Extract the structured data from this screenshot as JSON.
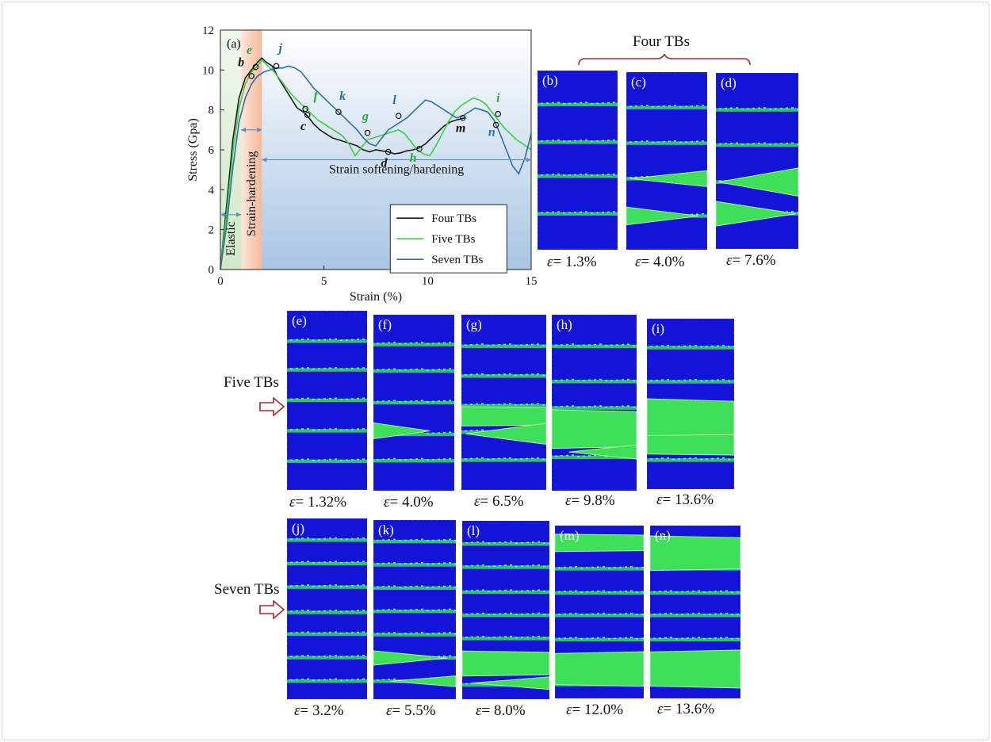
{
  "colors": {
    "four": "#1a1a1a",
    "five": "#3ecf3e",
    "seven": "#2b6ea8",
    "label_five": "#2aa83a",
    "label_seven": "#2b6ea8",
    "panel_bg": "#1414d6",
    "twin_band": "#2fd46a",
    "arrow": "#a52a2a"
  },
  "chart_data": {
    "type": "line",
    "panel_label": "(a)",
    "xlabel": "Strain (%)",
    "ylabel": "Stress (Gpa)",
    "xlim": [
      0,
      15
    ],
    "ylim": [
      0,
      12
    ],
    "xticks": [
      0,
      5,
      10,
      15
    ],
    "yticks": [
      0,
      2,
      4,
      6,
      8,
      10,
      12
    ],
    "regions": [
      {
        "name": "Elastic",
        "from": 0,
        "to": 1
      },
      {
        "name": "Strain-hardening",
        "from": 1,
        "to": 2
      },
      {
        "name": "Strain softening/hardening",
        "from": 2,
        "to": 15
      }
    ],
    "legend": {
      "position": "bottom-right",
      "entries": [
        "Four TBs",
        "Five TBs",
        "Seven TBs"
      ]
    },
    "series": [
      {
        "name": "Four TBs",
        "key": "four",
        "x": [
          0,
          0.3,
          0.6,
          0.9,
          1.2,
          1.5,
          1.8,
          2.0,
          2.2,
          2.5,
          2.8,
          3.1,
          3.4,
          3.7,
          4.0,
          4.2,
          4.5,
          4.8,
          5.1,
          5.4,
          5.7,
          6.0,
          6.3,
          6.6,
          6.9,
          7.2,
          7.5,
          7.8,
          8.1,
          8.4,
          8.7,
          9.0,
          9.3,
          9.6,
          9.9,
          10.2,
          10.5,
          10.8,
          11.1,
          11.4,
          11.8
        ],
        "y": [
          0,
          3.2,
          6.5,
          8.6,
          9.6,
          10.0,
          10.4,
          10.6,
          10.4,
          10.2,
          9.6,
          9.1,
          8.6,
          8.1,
          7.9,
          7.7,
          7.3,
          7.0,
          6.8,
          6.6,
          6.5,
          6.4,
          6.3,
          6.2,
          6.0,
          5.9,
          6.0,
          5.95,
          5.9,
          5.8,
          5.85,
          5.95,
          6.0,
          6.1,
          6.3,
          6.6,
          6.9,
          7.2,
          7.4,
          7.5,
          7.6
        ]
      },
      {
        "name": "Five TBs",
        "key": "five",
        "x": [
          0,
          0.3,
          0.6,
          0.9,
          1.2,
          1.5,
          1.8,
          2.0,
          2.3,
          2.6,
          2.9,
          3.2,
          3.5,
          3.8,
          4.1,
          4.4,
          4.7,
          5.0,
          5.3,
          5.6,
          5.9,
          6.2,
          6.5,
          6.8,
          7.1,
          7.4,
          7.7,
          8.0,
          8.3,
          8.6,
          8.9,
          9.2,
          9.5,
          9.8,
          10.1,
          10.4,
          10.7,
          11.0,
          11.3,
          11.6,
          11.9,
          12.2,
          12.5,
          12.8,
          13.1,
          13.4,
          13.7,
          14.0,
          14.3,
          14.6,
          15.0
        ],
        "y": [
          0,
          2.8,
          5.9,
          8.1,
          9.3,
          9.9,
          10.2,
          10.5,
          10.2,
          9.9,
          9.5,
          9.1,
          8.7,
          8.4,
          8.1,
          7.8,
          7.5,
          7.3,
          7.1,
          6.9,
          6.7,
          6.3,
          5.7,
          6.1,
          6.5,
          6.6,
          6.7,
          6.8,
          6.9,
          7.0,
          6.8,
          6.4,
          6.0,
          5.8,
          5.7,
          6.2,
          6.8,
          7.4,
          7.9,
          8.2,
          8.4,
          8.6,
          8.5,
          8.3,
          7.9,
          7.5,
          7.1,
          6.8,
          6.5,
          6.3,
          6.0
        ]
      },
      {
        "name": "Seven TBs",
        "key": "seven",
        "x": [
          0,
          0.3,
          0.6,
          0.9,
          1.2,
          1.5,
          1.8,
          2.1,
          2.4,
          2.7,
          3.0,
          3.3,
          3.6,
          3.9,
          4.2,
          4.5,
          4.8,
          5.1,
          5.4,
          5.7,
          6.0,
          6.3,
          6.6,
          6.9,
          7.2,
          7.5,
          7.8,
          8.1,
          8.4,
          8.7,
          9.0,
          9.3,
          9.6,
          9.9,
          10.2,
          10.5,
          10.8,
          11.1,
          11.4,
          11.7,
          12.0,
          12.3,
          12.6,
          12.9,
          13.2,
          13.5,
          13.8,
          14.1,
          14.4,
          14.7,
          15.0
        ],
        "y": [
          0,
          2.2,
          5.1,
          7.4,
          8.6,
          9.3,
          9.7,
          9.9,
          10.0,
          10.1,
          10.1,
          10.2,
          10.1,
          9.9,
          9.5,
          9.1,
          8.8,
          8.5,
          8.2,
          7.9,
          7.6,
          7.3,
          7.0,
          6.6,
          6.3,
          6.2,
          6.6,
          7.0,
          7.2,
          7.4,
          7.6,
          7.9,
          8.2,
          8.5,
          8.4,
          8.2,
          8.0,
          7.8,
          7.6,
          7.7,
          7.9,
          8.1,
          8.0,
          7.9,
          7.5,
          6.8,
          6.0,
          5.2,
          4.8,
          5.6,
          6.8
        ]
      }
    ],
    "markers": [
      {
        "label": "b",
        "series": "four",
        "x": 1.5,
        "y": 9.7,
        "tx": 1.0,
        "ty": 10.2
      },
      {
        "label": "c",
        "series": "four",
        "x": 4.2,
        "y": 7.75,
        "tx": 4.0,
        "ty": 7.0
      },
      {
        "label": "d",
        "series": "four",
        "x": 8.1,
        "y": 5.9,
        "tx": 7.9,
        "ty": 5.15
      },
      {
        "label": "m",
        "series": "four",
        "x": 11.7,
        "y": 7.6,
        "tx": 11.6,
        "ty": 6.9
      },
      {
        "label": "e",
        "series": "five",
        "x": 1.7,
        "y": 10.15,
        "tx": 1.4,
        "ty": 10.8
      },
      {
        "label": "f",
        "series": "five",
        "x": 4.1,
        "y": 8.05,
        "tx": 4.6,
        "ty": 8.5
      },
      {
        "label": "g",
        "series": "five",
        "x": 7.1,
        "y": 6.85,
        "tx": 7.0,
        "ty": 7.5
      },
      {
        "label": "h",
        "series": "five",
        "x": 9.6,
        "y": 6.05,
        "tx": 9.3,
        "ty": 5.4
      },
      {
        "label": "i",
        "series": "five",
        "x": 13.4,
        "y": 7.8,
        "tx": 13.4,
        "ty": 8.4
      },
      {
        "label": "j",
        "series": "seven",
        "x": 2.7,
        "y": 10.2,
        "tx": 2.9,
        "ty": 10.9
      },
      {
        "label": "k",
        "series": "seven",
        "x": 5.7,
        "y": 7.9,
        "tx": 5.9,
        "ty": 8.5
      },
      {
        "label": "l",
        "series": "seven",
        "x": 8.6,
        "y": 7.7,
        "tx": 8.4,
        "ty": 8.3
      },
      {
        "label": "n",
        "series": "seven",
        "x": 13.3,
        "y": 7.25,
        "tx": 13.1,
        "ty": 6.7
      }
    ]
  },
  "groups": {
    "four_title": "Four TBs",
    "five_label": "Five TBs",
    "seven_label": "Seven TBs"
  },
  "panels": [
    {
      "id": "b",
      "label": "(b)",
      "strain": "= 1.3%",
      "bands": "four-b"
    },
    {
      "id": "c",
      "label": "(c)",
      "strain": "= 4.0%",
      "bands": "four-c"
    },
    {
      "id": "d",
      "label": "(d)",
      "strain": "= 7.6%",
      "bands": "four-d"
    },
    {
      "id": "e",
      "label": "(e)",
      "strain": "= 1.32%",
      "bands": "five-e"
    },
    {
      "id": "f",
      "label": "(f)",
      "strain": "= 4.0%",
      "bands": "five-f"
    },
    {
      "id": "g",
      "label": "(g)",
      "strain": "= 6.5%",
      "bands": "five-g"
    },
    {
      "id": "h",
      "label": "(h)",
      "strain": "= 9.8%",
      "bands": "five-h"
    },
    {
      "id": "i",
      "label": "(i)",
      "strain": "= 13.6%",
      "bands": "five-i"
    },
    {
      "id": "j",
      "label": "(j)",
      "strain": "= 3.2%",
      "bands": "seven-j"
    },
    {
      "id": "k",
      "label": "(k)",
      "strain": "= 5.5%",
      "bands": "seven-k"
    },
    {
      "id": "l",
      "label": "(l)",
      "strain": "= 8.0%",
      "bands": "seven-l"
    },
    {
      "id": "m",
      "label": "(m)",
      "strain": "= 12.0%",
      "bands": "seven-m"
    },
    {
      "id": "n",
      "label": "(n)",
      "strain": "= 13.6%",
      "bands": "seven-n"
    }
  ],
  "epsilon_symbol": "ε"
}
